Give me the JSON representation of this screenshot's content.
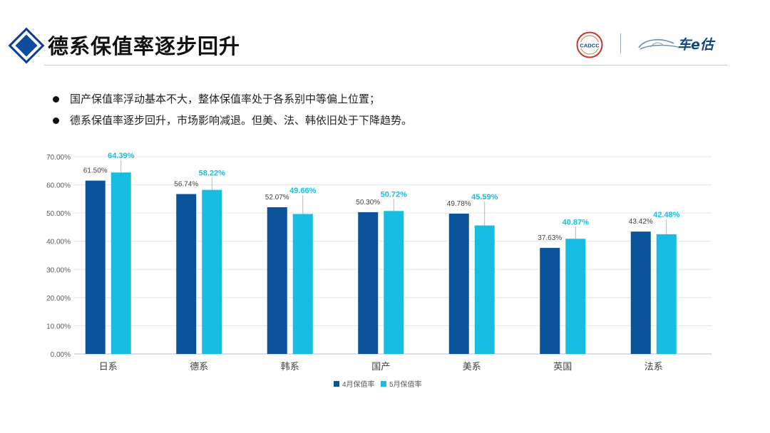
{
  "header": {
    "title": "德系保值率逐步回升",
    "logo_cadcc": "CADCC",
    "logo_brand": "车e估",
    "colors": {
      "accent": "#0d4d9c"
    }
  },
  "bullets": [
    "国产保值率浮动基本不大，整体保值率处于各系别中等偏上位置；",
    "德系保值率逐步回升，市场影响减退。但美、法、韩依旧处于下降趋势。"
  ],
  "chart_data": {
    "type": "bar",
    "categories": [
      "日系",
      "德系",
      "韩系",
      "国产",
      "美系",
      "英国",
      "法系"
    ],
    "series": [
      {
        "name": "4月保值率",
        "color": "#0a5299",
        "values": [
          61.5,
          56.74,
          52.07,
          50.3,
          49.78,
          37.63,
          43.42
        ],
        "labels": [
          "61.50%",
          "56.74%",
          "52.07%",
          "50.30%",
          "49.78%",
          "37.63%",
          "43.42%"
        ]
      },
      {
        "name": "5月保值率",
        "color": "#16bde0",
        "values": [
          64.39,
          58.22,
          49.66,
          50.72,
          45.59,
          40.87,
          42.48
        ],
        "labels": [
          "64.39%",
          "58.22%",
          "49.66%",
          "50.72%",
          "45.59%",
          "40.87%",
          "42.48%"
        ]
      }
    ],
    "yticks": [
      "0.00%",
      "10.00%",
      "20.00%",
      "30.00%",
      "40.00%",
      "50.00%",
      "60.00%",
      "70.00%"
    ],
    "ylim": [
      0,
      70
    ],
    "grid": true,
    "legend": "bottom-center"
  }
}
